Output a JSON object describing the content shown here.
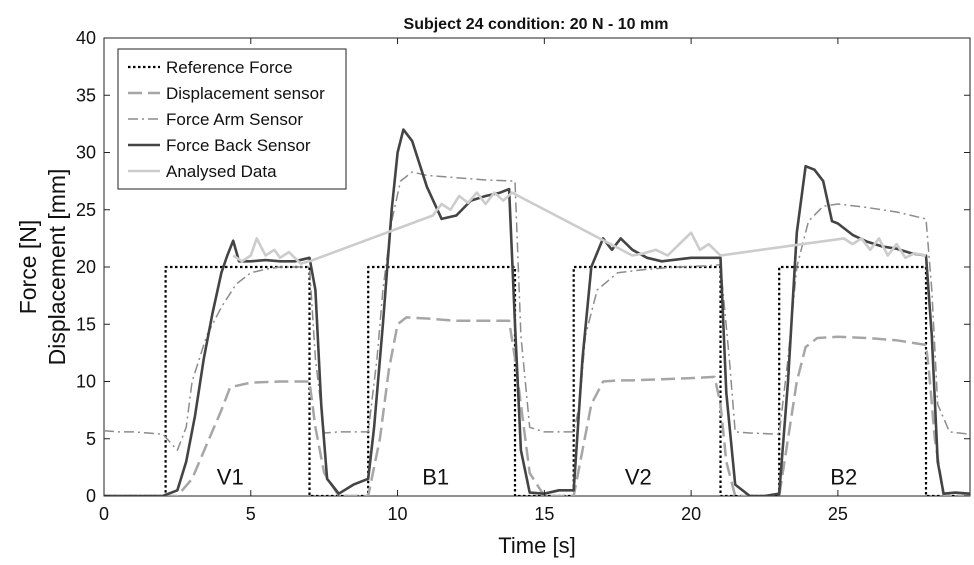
{
  "chart_data": {
    "type": "line",
    "title": "Subject 24 condition: 20 N - 10 mm",
    "xlabel": "Time [s]",
    "ylabel_lines": [
      "Force [N]",
      "Displacement [mm]"
    ],
    "xlim": [
      0,
      29.5
    ],
    "ylim": [
      0,
      40
    ],
    "xticks": [
      0,
      5,
      10,
      15,
      20,
      25
    ],
    "yticks": [
      0,
      5,
      10,
      15,
      20,
      25,
      30,
      35,
      40
    ],
    "grid": false,
    "legend_position": "top-left",
    "annotations": [
      {
        "text": "V1",
        "x": 4.3,
        "y": 1
      },
      {
        "text": "B1",
        "x": 11.3,
        "y": 1
      },
      {
        "text": "V2",
        "x": 18.2,
        "y": 1
      },
      {
        "text": "B2",
        "x": 25.2,
        "y": 1
      }
    ],
    "series": [
      {
        "name": "Reference Force",
        "style": "dotted",
        "color": "#000000",
        "width": 2.2,
        "x": [
          0,
          2.1,
          2.1,
          7.0,
          7.0,
          9.0,
          9.0,
          14.0,
          14.0,
          16.0,
          16.0,
          21.0,
          21.0,
          23.0,
          23.0,
          28.0,
          28.0,
          29.5
        ],
        "y": [
          0,
          0,
          20,
          20,
          0,
          0,
          20,
          20,
          0,
          0,
          20,
          20,
          0,
          0,
          20,
          20,
          0,
          0
        ]
      },
      {
        "name": "Displacement sensor",
        "style": "long-dash",
        "color": "#a6a6a6",
        "width": 2.5,
        "x": [
          0,
          2.5,
          3.0,
          3.5,
          4.0,
          4.3,
          5.0,
          6.0,
          7.0,
          7.2,
          7.5,
          8.0,
          9.0,
          9.4,
          9.7,
          10.0,
          10.3,
          11.0,
          12.0,
          13.0,
          13.8,
          14.0,
          14.5,
          15.0,
          16.0,
          16.3,
          16.6,
          17.0,
          17.5,
          18.0,
          19.0,
          20.0,
          20.8,
          21.0,
          21.2,
          21.5,
          22.0,
          23.0,
          23.3,
          23.6,
          23.9,
          24.3,
          25.0,
          26.0,
          27.0,
          28.0,
          28.1,
          28.3,
          28.6,
          29.5
        ],
        "y": [
          0,
          0,
          1.5,
          4.5,
          7.5,
          9.5,
          9.9,
          10,
          10,
          6,
          2,
          0,
          0,
          5,
          11,
          15,
          15.6,
          15.5,
          15.3,
          15.3,
          15.3,
          12,
          2,
          0,
          0,
          4,
          8,
          10,
          10.1,
          10.1,
          10.2,
          10.3,
          10.4,
          8,
          3,
          0,
          0,
          0,
          5,
          10,
          13,
          13.8,
          13.9,
          13.8,
          13.6,
          13.2,
          11,
          5,
          0,
          0
        ]
      },
      {
        "name": "Force Arm Sensor",
        "style": "dash-dot",
        "color": "#8c8c8c",
        "width": 1.5,
        "x": [
          0,
          0.5,
          1.0,
          1.5,
          2.0,
          2.5,
          2.8,
          3.0,
          3.5,
          4.0,
          4.5,
          5.0,
          5.5,
          6.0,
          6.5,
          7.0,
          7.2,
          7.5,
          8.0,
          9.0,
          9.3,
          9.5,
          9.8,
          10.1,
          10.5,
          11.0,
          12.0,
          13.0,
          14.0,
          14.2,
          14.5,
          15.0,
          16.0,
          16.2,
          16.4,
          16.8,
          17.5,
          18.5,
          19.5,
          20.5,
          21.0,
          21.3,
          21.5,
          22.0,
          23.0,
          23.3,
          23.6,
          24.0,
          24.5,
          25.0,
          26.0,
          27.0,
          28.0,
          28.2,
          28.4,
          28.8,
          29.5
        ],
        "y": [
          5.7,
          5.6,
          5.6,
          5.5,
          5.4,
          4,
          6,
          10,
          14,
          16.5,
          18.5,
          19.5,
          19.8,
          20,
          20,
          20,
          12,
          5.5,
          5.6,
          5.6,
          12,
          18,
          24,
          27.5,
          28.3,
          28,
          27.8,
          27.6,
          27.5,
          14,
          6,
          5.6,
          5.6,
          8,
          14,
          18,
          19.5,
          19.8,
          20,
          20.1,
          20.2,
          12,
          5.6,
          5.5,
          5.4,
          12,
          20,
          24,
          25.3,
          25.5,
          25.2,
          24.8,
          24.2,
          18,
          8,
          5.6,
          5.4
        ]
      },
      {
        "name": "Force Back Sensor",
        "style": "solid",
        "color": "#444444",
        "width": 2.6,
        "x": [
          0,
          1.0,
          2.0,
          2.5,
          2.8,
          3.1,
          3.4,
          3.7,
          4.0,
          4.2,
          4.4,
          4.6,
          5.0,
          5.5,
          6.0,
          6.5,
          7.0,
          7.2,
          7.4,
          7.6,
          8.0,
          8.5,
          9.0,
          9.2,
          9.5,
          9.8,
          10.0,
          10.2,
          10.5,
          11.0,
          11.5,
          12.0,
          12.5,
          13.0,
          13.5,
          13.8,
          14.0,
          14.2,
          14.5,
          15.0,
          15.5,
          16.0,
          16.3,
          16.6,
          17.0,
          17.3,
          17.6,
          18.0,
          18.5,
          19.0,
          20.0,
          21.0,
          21.2,
          21.5,
          22.0,
          22.5,
          23.0,
          23.3,
          23.6,
          23.9,
          24.2,
          24.5,
          24.8,
          25.0,
          25.5,
          26.0,
          26.5,
          27.0,
          27.5,
          28.0,
          28.2,
          28.4,
          28.6,
          29.0,
          29.5
        ],
        "y": [
          0,
          0,
          0,
          0.5,
          3,
          7,
          12,
          16,
          19.5,
          21,
          22.3,
          20.5,
          20.5,
          20.6,
          20.5,
          20.5,
          20.8,
          18,
          8,
          1.5,
          0.2,
          1,
          1.5,
          6,
          15,
          25,
          30,
          32,
          31,
          27,
          24.2,
          24.5,
          25.8,
          26.2,
          26.5,
          26.8,
          15,
          4,
          0.3,
          0.2,
          0.5,
          0.5,
          12,
          20,
          22.5,
          21.5,
          22.5,
          21.5,
          20.8,
          20.5,
          20.8,
          20.8,
          9,
          1,
          0,
          0,
          0.2,
          10,
          23,
          28.8,
          28.5,
          27.5,
          24,
          23.8,
          22.8,
          22.2,
          21.8,
          21.6,
          21.2,
          21,
          14,
          3,
          0.2,
          0.3,
          0.2
        ]
      },
      {
        "name": "Analysed Data",
        "style": "solid",
        "color": "#cccccc",
        "width": 2.6,
        "x": [
          4.4,
          4.7,
          5.0,
          5.2,
          5.5,
          5.8,
          6.0,
          6.3,
          6.7,
          7.0,
          11.2,
          11.5,
          11.8,
          12.1,
          12.4,
          12.7,
          13.0,
          13.3,
          13.6,
          13.9,
          18.0,
          18.4,
          18.8,
          19.2,
          19.6,
          20.0,
          20.3,
          20.6,
          21.0,
          25.2,
          25.5,
          25.8,
          26.1,
          26.4,
          26.7,
          27.0,
          27.3,
          27.6,
          28.0
        ],
        "y": [
          21,
          20.5,
          21,
          22.5,
          21,
          21.5,
          20.8,
          21.3,
          20.3,
          20.5,
          24.5,
          25.5,
          25,
          26.2,
          25.6,
          26.5,
          25.5,
          26.5,
          25.8,
          26.5,
          21,
          21.2,
          21.5,
          21,
          22,
          23,
          21.5,
          22,
          21,
          22.5,
          22,
          22.5,
          21.5,
          22.5,
          21,
          22,
          20.8,
          21.2,
          21
        ]
      }
    ]
  }
}
